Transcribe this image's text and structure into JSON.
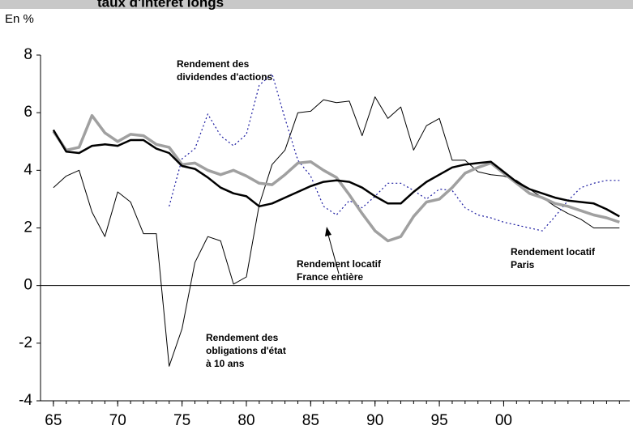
{
  "chart_data": {
    "type": "line",
    "title": "taux d'intérêt longs",
    "y_label": "En %",
    "x": [
      1965,
      1966,
      1967,
      1968,
      1969,
      1970,
      1971,
      1972,
      1973,
      1974,
      1975,
      1976,
      1977,
      1978,
      1979,
      1980,
      1981,
      1982,
      1983,
      1984,
      1985,
      1986,
      1987,
      1988,
      1989,
      1990,
      1991,
      1992,
      1993,
      1994,
      1995,
      1996,
      1997,
      1998,
      1999,
      2000,
      2001,
      2002,
      2003,
      2004,
      2005,
      2006,
      2007,
      2008,
      2009
    ],
    "series": [
      {
        "name": "Rendement des obligations d'état à 10 ans",
        "color": "#000000",
        "width": 1,
        "dash": false,
        "values": [
          3.4,
          3.8,
          4.0,
          2.55,
          1.7,
          3.25,
          2.9,
          1.8,
          1.8,
          -2.8,
          -1.5,
          0.8,
          1.7,
          1.55,
          0.05,
          0.3,
          2.8,
          4.2,
          4.7,
          6.0,
          6.05,
          6.45,
          6.35,
          6.4,
          5.2,
          6.55,
          5.8,
          6.2,
          4.7,
          5.55,
          5.8,
          4.35,
          4.35,
          3.95,
          3.85,
          3.8,
          3.65,
          3.35,
          3.05,
          2.75,
          2.5,
          2.3,
          2.0,
          2.0,
          2.0
        ]
      },
      {
        "name": "Rendement des dividendes d'actions",
        "color": "#1a1aa0",
        "width": 1.2,
        "dash": true,
        "values": [
          null,
          null,
          null,
          null,
          null,
          null,
          null,
          null,
          null,
          2.75,
          4.4,
          4.75,
          5.95,
          5.2,
          4.85,
          5.25,
          6.95,
          7.35,
          5.8,
          4.35,
          3.8,
          2.75,
          2.45,
          2.95,
          2.7,
          3.1,
          3.55,
          3.55,
          3.3,
          3.0,
          3.35,
          3.3,
          2.7,
          2.45,
          2.35,
          2.2,
          2.1,
          2.0,
          1.9,
          2.4,
          2.95,
          3.4,
          3.55,
          3.65,
          3.65
        ]
      },
      {
        "name": "Rendement locatif Paris",
        "color": "#a0a0a0",
        "width": 3.5,
        "dash": false,
        "values": [
          5.35,
          4.7,
          4.8,
          5.9,
          5.3,
          5.0,
          5.25,
          5.2,
          4.9,
          4.8,
          4.2,
          4.25,
          4.0,
          3.85,
          4.0,
          3.8,
          3.55,
          3.5,
          3.85,
          4.25,
          4.3,
          4.0,
          3.75,
          3.15,
          2.5,
          1.9,
          1.55,
          1.7,
          2.4,
          2.9,
          3.0,
          3.4,
          3.9,
          4.1,
          4.25,
          3.9,
          3.55,
          3.2,
          3.05,
          2.85,
          2.75,
          2.6,
          2.45,
          2.35,
          2.2
        ]
      },
      {
        "name": "Rendement locatif France entière",
        "color": "#000000",
        "width": 2.5,
        "dash": false,
        "values": [
          5.4,
          4.65,
          4.6,
          4.85,
          4.9,
          4.85,
          5.05,
          5.05,
          4.75,
          4.6,
          4.15,
          4.05,
          3.75,
          3.4,
          3.2,
          3.1,
          2.75,
          2.85,
          3.05,
          3.25,
          3.45,
          3.6,
          3.65,
          3.6,
          3.4,
          3.1,
          2.85,
          2.85,
          3.25,
          3.6,
          3.85,
          4.1,
          4.2,
          4.25,
          4.3,
          3.95,
          3.6,
          3.35,
          3.2,
          3.05,
          2.95,
          2.9,
          2.85,
          2.65,
          2.4
        ]
      }
    ],
    "annotations": [
      {
        "lines": [
          "Rendement des",
          "dividendes d'actions"
        ]
      },
      {
        "lines": [
          "Rendement locatif",
          "France entière"
        ]
      },
      {
        "lines": [
          "Rendement locatif",
          "Paris"
        ]
      },
      {
        "lines": [
          "Rendement des",
          "obligations d'état",
          "à 10 ans"
        ]
      }
    ],
    "xlim": [
      1964,
      2009.8
    ],
    "xticks": [
      {
        "value": 1965,
        "label": "65"
      },
      {
        "value": 1970,
        "label": "70"
      },
      {
        "value": 1975,
        "label": "75"
      },
      {
        "value": 1980,
        "label": "80"
      },
      {
        "value": 1985,
        "label": "85"
      },
      {
        "value": 1990,
        "label": "90"
      },
      {
        "value": 1995,
        "label": "95"
      },
      {
        "value": 2000,
        "label": "00"
      }
    ],
    "ylim": [
      -4,
      8
    ],
    "yticks": [
      -4,
      -2,
      0,
      2,
      4,
      6,
      8
    ]
  }
}
